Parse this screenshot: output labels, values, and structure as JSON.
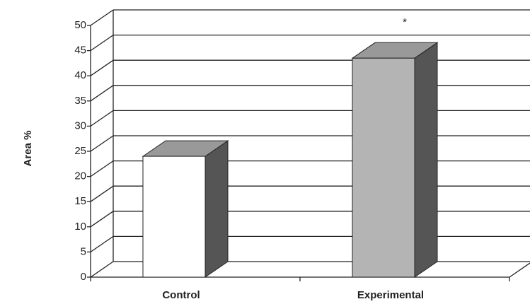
{
  "chart_data": {
    "type": "bar3d",
    "ylabel": "Area %",
    "annotation": "*",
    "categories": [
      "Control",
      "Experimental"
    ],
    "values": [
      24,
      43.5
    ],
    "colors": [
      "#ffffff",
      "#b4b4b4"
    ],
    "ylim": [
      0,
      50
    ],
    "yticks": [
      0,
      5,
      10,
      15,
      20,
      25,
      30,
      35,
      40,
      45,
      50
    ],
    "grid": true
  }
}
